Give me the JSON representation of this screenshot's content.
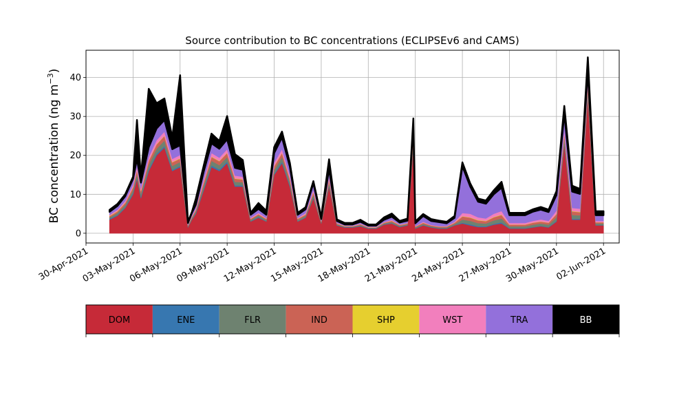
{
  "chart_data": {
    "type": "area",
    "title": "Source contribution to BC concentrations (ECLIPSEv6 and CAMS)",
    "xlabel": "",
    "ylabel": "BC concentration (ng m",
    "ylabel_sup": "−3",
    "ylabel_close": ")",
    "xlim": [
      "2021-04-30",
      "2021-06-03"
    ],
    "ylim": [
      -2.5,
      47
    ],
    "yticks": [
      0,
      10,
      20,
      30,
      40
    ],
    "xticks": [
      "2021-04-30",
      "2021-05-03",
      "2021-05-06",
      "2021-05-09",
      "2021-05-12",
      "2021-05-15",
      "2021-05-18",
      "2021-05-21",
      "2021-05-24",
      "2021-05-27",
      "2021-05-30",
      "2021-06-02"
    ],
    "xtick_labels": [
      "30-Apr-2021",
      "03-May-2021",
      "06-May-2021",
      "09-May-2021",
      "12-May-2021",
      "15-May-2021",
      "18-May-2021",
      "21-May-2021",
      "24-May-2021",
      "27-May-2021",
      "30-May-2021",
      "02-Jun-2021"
    ],
    "grid": true,
    "stacked": true,
    "x": [
      "2021-05-01 12:00",
      "2021-05-02 00:00",
      "2021-05-02 12:00",
      "2021-05-03 00:00",
      "2021-05-03 06:00",
      "2021-05-03 12:00",
      "2021-05-04 00:00",
      "2021-05-04 12:00",
      "2021-05-05 00:00",
      "2021-05-05 12:00",
      "2021-05-06 00:00",
      "2021-05-06 12:00",
      "2021-05-06 18:00",
      "2021-05-07 00:00",
      "2021-05-07 12:00",
      "2021-05-08 00:00",
      "2021-05-08 12:00",
      "2021-05-09 00:00",
      "2021-05-09 12:00",
      "2021-05-10 00:00",
      "2021-05-10 12:00",
      "2021-05-11 00:00",
      "2021-05-11 12:00",
      "2021-05-12 00:00",
      "2021-05-12 12:00",
      "2021-05-13 00:00",
      "2021-05-13 12:00",
      "2021-05-14 00:00",
      "2021-05-14 12:00",
      "2021-05-15 00:00",
      "2021-05-15 12:00",
      "2021-05-16 00:00",
      "2021-05-16 12:00",
      "2021-05-17 00:00",
      "2021-05-17 12:00",
      "2021-05-18 00:00",
      "2021-05-18 12:00",
      "2021-05-19 00:00",
      "2021-05-19 12:00",
      "2021-05-20 00:00",
      "2021-05-20 12:00",
      "2021-05-20 21:00",
      "2021-05-21 00:00",
      "2021-05-21 12:00",
      "2021-05-22 00:00",
      "2021-05-22 12:00",
      "2021-05-23 00:00",
      "2021-05-23 12:00",
      "2021-05-24 00:00",
      "2021-05-24 12:00",
      "2021-05-25 00:00",
      "2021-05-25 12:00",
      "2021-05-26 00:00",
      "2021-05-26 12:00",
      "2021-05-27 00:00",
      "2021-05-27 12:00",
      "2021-05-28 00:00",
      "2021-05-28 12:00",
      "2021-05-29 00:00",
      "2021-05-29 12:00",
      "2021-05-30 00:00",
      "2021-05-30 12:00",
      "2021-05-31 00:00",
      "2021-05-31 12:00",
      "2021-06-01 00:00",
      "2021-06-01 12:00",
      "2021-06-02 00:00"
    ],
    "series": [
      {
        "name": "DOM",
        "color": "#c62a38",
        "values": [
          3.5,
          4.5,
          6.5,
          10,
          14,
          9,
          16,
          20,
          22,
          16,
          17,
          1.5,
          3.5,
          5,
          11,
          17,
          16,
          18,
          12,
          12,
          3,
          4,
          3,
          15,
          18,
          12,
          3,
          4,
          9,
          2.5,
          12,
          2,
          1.5,
          1.5,
          1.8,
          1.2,
          1.2,
          2.2,
          2.5,
          1.6,
          2,
          22,
          1.2,
          2,
          1.5,
          1.2,
          1.2,
          2,
          2.5,
          2,
          1.6,
          1.6,
          2.2,
          2.5,
          1.2,
          1.2,
          1.2,
          1.5,
          1.8,
          1.5,
          3,
          23,
          3.5,
          3.5,
          35,
          2,
          2
        ]
      },
      {
        "name": "ENE",
        "color": "#3777b0",
        "values": [
          0.2,
          0.2,
          0.2,
          0.3,
          0.3,
          0.3,
          0.4,
          0.4,
          0.4,
          0.3,
          0.3,
          0.1,
          0.1,
          0.2,
          0.3,
          0.4,
          0.4,
          0.4,
          0.3,
          0.3,
          0.1,
          0.2,
          0.1,
          0.3,
          0.4,
          0.3,
          0.1,
          0.1,
          0.2,
          0.1,
          0.3,
          0.1,
          0.1,
          0.1,
          0.1,
          0.1,
          0.1,
          0.1,
          0.1,
          0.1,
          0.1,
          0.3,
          0.1,
          0.1,
          0.1,
          0.1,
          0.1,
          0.1,
          0.2,
          0.3,
          0.2,
          0.2,
          0.2,
          0.3,
          0.1,
          0.1,
          0.1,
          0.1,
          0.1,
          0.1,
          0.2,
          0.4,
          0.2,
          0.2,
          0.4,
          0.1,
          0.1
        ]
      },
      {
        "name": "FLR",
        "color": "#6e8270",
        "values": [
          0.4,
          0.5,
          0.6,
          0.8,
          1.0,
          0.8,
          1.2,
          1.3,
          1.4,
          1.0,
          1.0,
          0.2,
          0.3,
          0.4,
          0.9,
          1.2,
          1.1,
          1.2,
          0.9,
          0.8,
          0.3,
          0.4,
          0.3,
          1.0,
          1.2,
          0.9,
          0.3,
          0.4,
          0.7,
          0.2,
          0.8,
          0.2,
          0.1,
          0.1,
          0.2,
          0.1,
          0.1,
          0.2,
          0.3,
          0.2,
          0.2,
          1.2,
          0.2,
          0.3,
          0.2,
          0.2,
          0.2,
          0.3,
          0.8,
          0.9,
          0.8,
          0.7,
          0.9,
          1.0,
          0.5,
          0.5,
          0.5,
          0.6,
          0.6,
          0.6,
          0.9,
          1.2,
          1.0,
          0.9,
          1.2,
          0.4,
          0.4
        ]
      },
      {
        "name": "IND",
        "color": "#cb6355",
        "values": [
          0.3,
          0.4,
          0.5,
          0.7,
          0.9,
          0.7,
          1.0,
          1.1,
          1.2,
          0.9,
          0.9,
          0.2,
          0.3,
          0.4,
          0.8,
          1.0,
          1.0,
          1.0,
          0.8,
          0.7,
          0.3,
          0.3,
          0.3,
          0.9,
          1.0,
          0.8,
          0.3,
          0.3,
          0.6,
          0.2,
          0.7,
          0.2,
          0.1,
          0.1,
          0.2,
          0.1,
          0.1,
          0.2,
          0.3,
          0.2,
          0.2,
          1.0,
          0.2,
          0.3,
          0.2,
          0.2,
          0.2,
          0.3,
          0.8,
          0.8,
          0.7,
          0.6,
          0.8,
          0.9,
          0.4,
          0.4,
          0.4,
          0.5,
          0.5,
          0.5,
          0.8,
          1.0,
          0.9,
          0.8,
          1.0,
          0.3,
          0.3
        ]
      },
      {
        "name": "SHP",
        "color": "#e6cf2f",
        "values": [
          0.1,
          0.1,
          0.1,
          0.1,
          0.1,
          0.1,
          0.1,
          0.1,
          0.1,
          0.1,
          0.1,
          0.05,
          0.05,
          0.05,
          0.1,
          0.1,
          0.1,
          0.1,
          0.1,
          0.1,
          0.05,
          0.05,
          0.05,
          0.1,
          0.1,
          0.1,
          0.05,
          0.05,
          0.1,
          0.05,
          0.1,
          0.05,
          0.05,
          0.05,
          0.05,
          0.05,
          0.05,
          0.05,
          0.05,
          0.05,
          0.05,
          0.1,
          0.05,
          0.05,
          0.05,
          0.05,
          0.05,
          0.05,
          0.1,
          0.1,
          0.1,
          0.1,
          0.1,
          0.1,
          0.05,
          0.05,
          0.05,
          0.05,
          0.05,
          0.05,
          0.1,
          0.1,
          0.1,
          0.1,
          0.1,
          0.05,
          0.05
        ]
      },
      {
        "name": "WST",
        "color": "#f27fbd",
        "values": [
          0.2,
          0.3,
          0.4,
          0.6,
          0.8,
          0.6,
          0.9,
          1.0,
          1.0,
          0.8,
          0.8,
          0.1,
          0.2,
          0.3,
          0.7,
          0.9,
          0.8,
          0.9,
          0.7,
          0.6,
          0.2,
          0.3,
          0.2,
          0.8,
          0.9,
          0.7,
          0.2,
          0.3,
          0.5,
          0.1,
          0.6,
          0.1,
          0.1,
          0.1,
          0.1,
          0.1,
          0.1,
          0.1,
          0.2,
          0.1,
          0.1,
          0.9,
          0.1,
          0.2,
          0.1,
          0.1,
          0.1,
          0.2,
          0.8,
          0.9,
          0.7,
          0.6,
          0.8,
          0.9,
          0.4,
          0.4,
          0.4,
          0.4,
          0.5,
          0.4,
          0.8,
          1.0,
          0.8,
          0.8,
          1.0,
          0.3,
          0.3
        ]
      },
      {
        "name": "TRA",
        "color": "#9370db",
        "values": [
          0.8,
          1.0,
          1.2,
          1.5,
          2.0,
          1.5,
          2.5,
          3.0,
          3.0,
          2.5,
          2.5,
          0.5,
          0.8,
          1.0,
          2.0,
          2.5,
          2.3,
          2.5,
          2.0,
          1.8,
          0.8,
          1.0,
          0.8,
          2.5,
          3.0,
          2.3,
          0.8,
          1.0,
          1.8,
          0.5,
          2.0,
          0.5,
          0.3,
          0.3,
          0.5,
          0.3,
          0.3,
          0.6,
          0.8,
          0.5,
          0.6,
          2.5,
          0.7,
          1.5,
          1.0,
          1.0,
          0.7,
          1.0,
          12,
          7,
          4.0,
          3.8,
          5.0,
          6.0,
          2.0,
          2.0,
          2.0,
          2.4,
          2.5,
          2.3,
          4.0,
          4.0,
          4.2,
          3.8,
          3.0,
          1.5,
          1.5
        ]
      },
      {
        "name": "BB",
        "color": "#000000",
        "values": [
          0.5,
          0.5,
          0.5,
          0.5,
          10,
          1.5,
          15,
          6.5,
          5.5,
          3,
          18,
          0.3,
          0.2,
          1.5,
          1.5,
          2.5,
          2,
          6,
          3.5,
          2.5,
          0.5,
          1.5,
          1.0,
          1.5,
          1.5,
          1.0,
          0.5,
          0.5,
          0.5,
          0.5,
          2.5,
          0.4,
          0.4,
          0.4,
          0.5,
          0.3,
          0.3,
          0.6,
          0.8,
          0.4,
          0.5,
          1.5,
          0.5,
          0.5,
          0.5,
          0.4,
          0.4,
          0.5,
          1.0,
          0.8,
          0.8,
          0.8,
          1.0,
          1.5,
          0.6,
          0.6,
          0.6,
          0.6,
          0.7,
          0.6,
          1.0,
          2.0,
          1.5,
          1.3,
          3.5,
          1.0,
          1.0
        ]
      }
    ],
    "legend": {
      "placement": "below-plot",
      "items": [
        {
          "label": "DOM",
          "color": "#c62a38",
          "text_color": "#000000"
        },
        {
          "label": "ENE",
          "color": "#3777b0",
          "text_color": "#000000"
        },
        {
          "label": "FLR",
          "color": "#6e8270",
          "text_color": "#000000"
        },
        {
          "label": "IND",
          "color": "#cb6355",
          "text_color": "#000000"
        },
        {
          "label": "SHP",
          "color": "#e6cf2f",
          "text_color": "#000000"
        },
        {
          "label": "WST",
          "color": "#f27fbd",
          "text_color": "#000000"
        },
        {
          "label": "TRA",
          "color": "#9370db",
          "text_color": "#000000"
        },
        {
          "label": "BB",
          "color": "#000000",
          "text_color": "#ffffff"
        }
      ]
    }
  }
}
